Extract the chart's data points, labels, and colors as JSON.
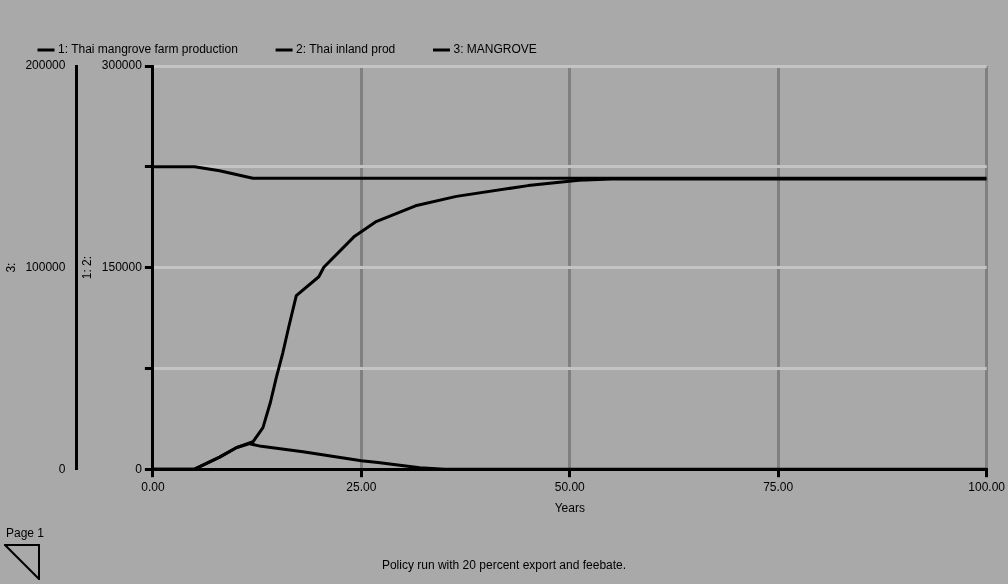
{
  "chart_data": {
    "type": "line",
    "xlabel": "Years",
    "ylabel": "1: 2:",
    "y2label": "3:",
    "xlim": [
      0,
      100
    ],
    "xticks": [
      {
        "value": 0,
        "label": "0.00"
      },
      {
        "value": 25,
        "label": "25.00"
      },
      {
        "value": 50,
        "label": "50.00"
      },
      {
        "value": 75,
        "label": "75.00"
      },
      {
        "value": 100,
        "label": "100.00"
      }
    ],
    "ylim": [
      0,
      300000
    ],
    "yticks": [
      0,
      {
        "value": 75000,
        "label": null
      },
      150000,
      {
        "value": 225000,
        "label": null
      },
      300000
    ],
    "y2lim": [
      0,
      200000
    ],
    "y2ticks": [
      0,
      100000,
      200000
    ],
    "grid": true,
    "legend": "top",
    "marker": "none",
    "annotations": [
      "Page 1",
      "Policy run with 20 percent export and feebate."
    ],
    "series": [
      {
        "name": "1: Thai mangrove farm production",
        "color": "#000000",
        "x": [
          0,
          5,
          6,
          8,
          10,
          11.6,
          13,
          18,
          25,
          27,
          32,
          35,
          100
        ],
        "values": [
          0,
          0,
          3000,
          9000,
          16000,
          19000,
          17000,
          13000,
          6300,
          5000,
          1000,
          0,
          0
        ]
      },
      {
        "name": "2: Thai inland prod",
        "color": "#000000",
        "x": [
          0,
          5,
          6,
          8,
          10,
          12,
          13.2,
          14.1,
          14.8,
          15.6,
          16.3,
          17.2,
          19.9,
          20.5,
          24.2,
          26.7,
          31.5,
          36.4,
          45,
          51.1,
          55,
          100
        ],
        "values": [
          0,
          0,
          3000,
          9000,
          16000,
          20400,
          30900,
          49800,
          68100,
          87000,
          106000,
          129200,
          143200,
          150300,
          173400,
          184000,
          196000,
          203000,
          211000,
          215000,
          216000,
          216000
        ]
      },
      {
        "name": "3: MANGROVE",
        "color": "#000000",
        "axis": "y2",
        "x": [
          0,
          5,
          8,
          12,
          100
        ],
        "values": [
          150000,
          150000,
          148000,
          144300,
          144300
        ]
      }
    ]
  }
}
